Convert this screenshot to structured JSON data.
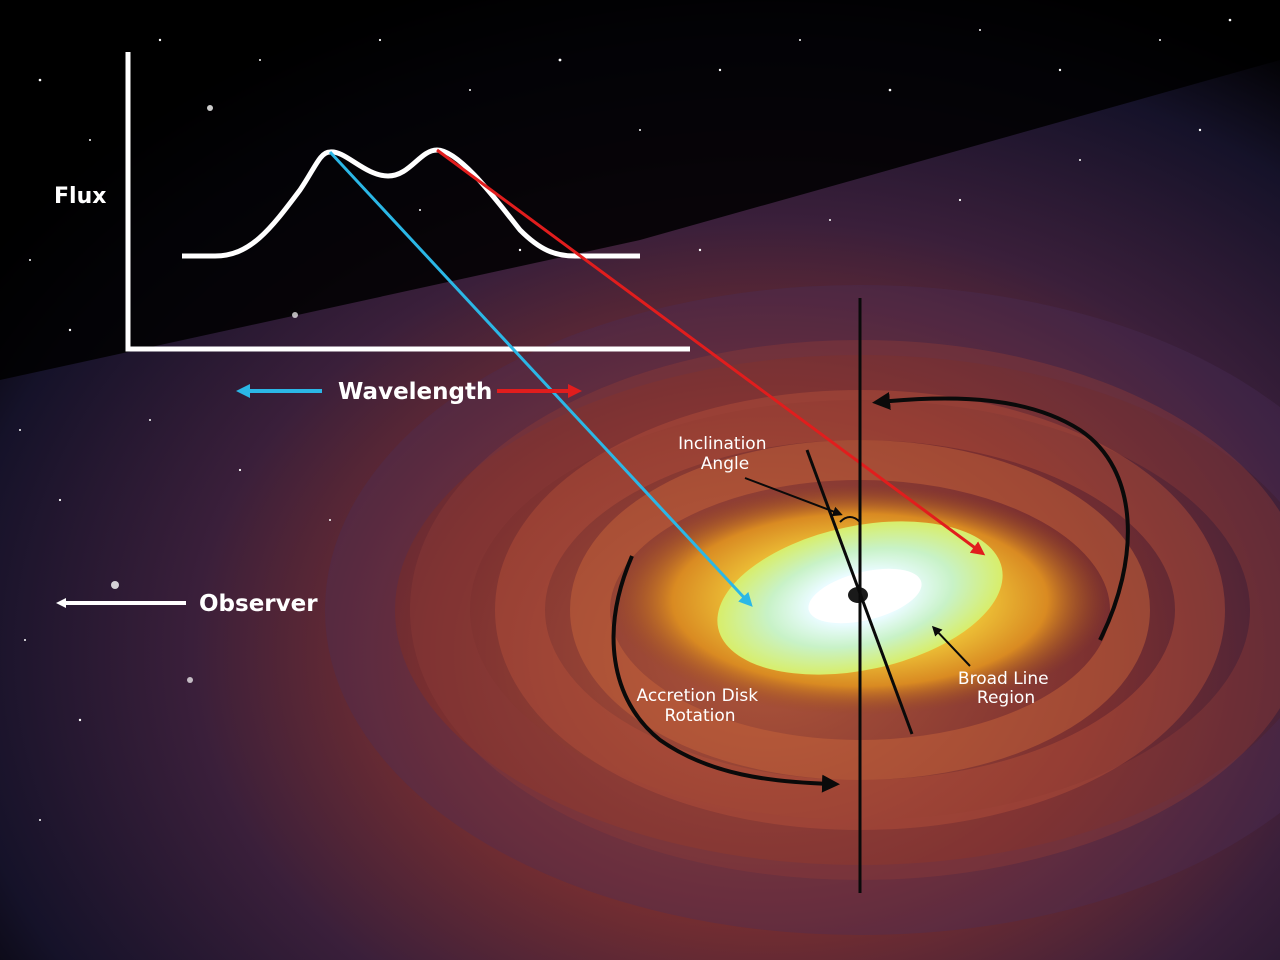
{
  "labels": {
    "flux": "Flux",
    "wavelength": "Wavelength",
    "observer": "Observer",
    "inclination_line1": "Inclination",
    "inclination_line2": "Angle",
    "accretion_line1": "Accretion Disk",
    "accretion_line2": "Rotation",
    "broad_line1": "Broad Line",
    "broad_line2": "Region"
  },
  "colors": {
    "blueshift": "#2bb7e6",
    "redshift": "#e11d1d",
    "annotation_white": "#ffffff",
    "annotation_black": "#0a0a0a"
  },
  "icons": {
    "blueshift_arrow": "left-arrow",
    "redshift_arrow": "right-arrow",
    "observer_arrow": "left-arrow"
  }
}
